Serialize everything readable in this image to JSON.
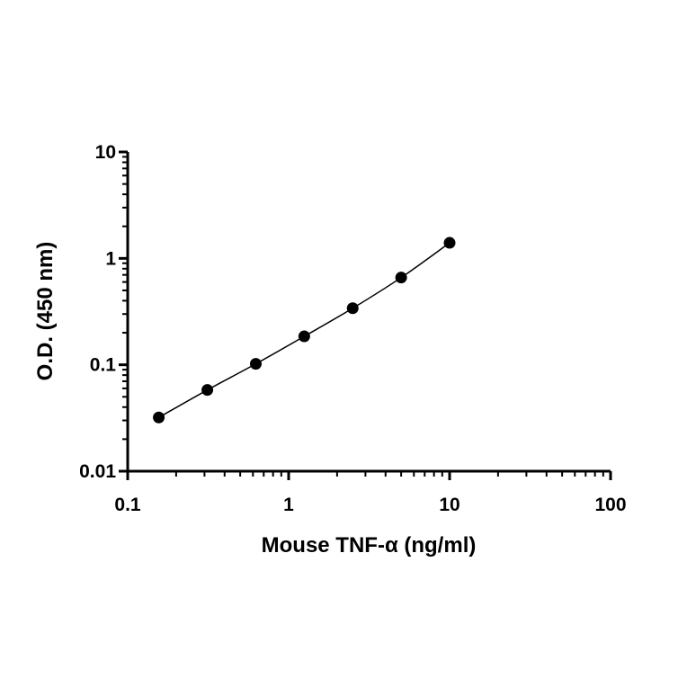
{
  "chart_data": {
    "type": "scatter",
    "xlabel": "Mouse TNF-α (ng/ml)",
    "ylabel": "O.D. (450 nm)",
    "x_scale": "log",
    "y_scale": "log",
    "xlim": [
      0.1,
      100
    ],
    "ylim": [
      0.01,
      10
    ],
    "x_ticks": [
      "0.1",
      "1",
      "10",
      "100"
    ],
    "y_ticks": [
      "0.01",
      "0.1",
      "1",
      "10"
    ],
    "grid": false,
    "legend": "none",
    "series": [
      {
        "x": [
          0.156,
          0.3125,
          0.625,
          1.25,
          2.5,
          5,
          10
        ],
        "y": [
          0.032,
          0.058,
          0.102,
          0.185,
          0.34,
          0.66,
          1.4
        ],
        "fit": "smooth curve",
        "color": "#000000"
      }
    ]
  }
}
